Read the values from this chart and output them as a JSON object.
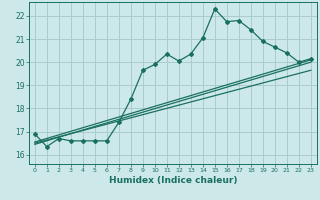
{
  "xlabel": "Humidex (Indice chaleur)",
  "ylabel": "",
  "xlim": [
    -0.5,
    23.5
  ],
  "ylim": [
    15.6,
    22.6
  ],
  "xticks": [
    0,
    1,
    2,
    3,
    4,
    5,
    6,
    7,
    8,
    9,
    10,
    11,
    12,
    13,
    14,
    15,
    16,
    17,
    18,
    19,
    20,
    21,
    22,
    23
  ],
  "yticks": [
    16,
    17,
    18,
    19,
    20,
    21,
    22
  ],
  "background_color": "#cce8e8",
  "grid_color": "#aacccc",
  "line_color": "#1a7060",
  "zigzag_x": [
    0,
    1,
    2,
    3,
    4,
    5,
    6,
    7,
    8,
    9,
    10,
    11,
    12,
    13,
    14,
    15,
    16,
    17,
    18,
    19,
    20,
    21,
    22,
    23
  ],
  "zigzag_y": [
    16.9,
    16.35,
    16.7,
    16.6,
    16.6,
    16.6,
    16.6,
    17.4,
    18.4,
    19.65,
    19.9,
    20.35,
    20.05,
    20.35,
    21.05,
    22.3,
    21.75,
    21.8,
    21.4,
    20.9,
    20.65,
    20.4,
    20.0,
    20.15
  ],
  "trend1_x": [
    0,
    23
  ],
  "trend1_y": [
    16.55,
    20.1
  ],
  "trend2_x": [
    0,
    23
  ],
  "trend2_y": [
    16.5,
    19.65
  ],
  "trend3_x": [
    0,
    23
  ],
  "trend3_y": [
    16.45,
    20.0
  ]
}
